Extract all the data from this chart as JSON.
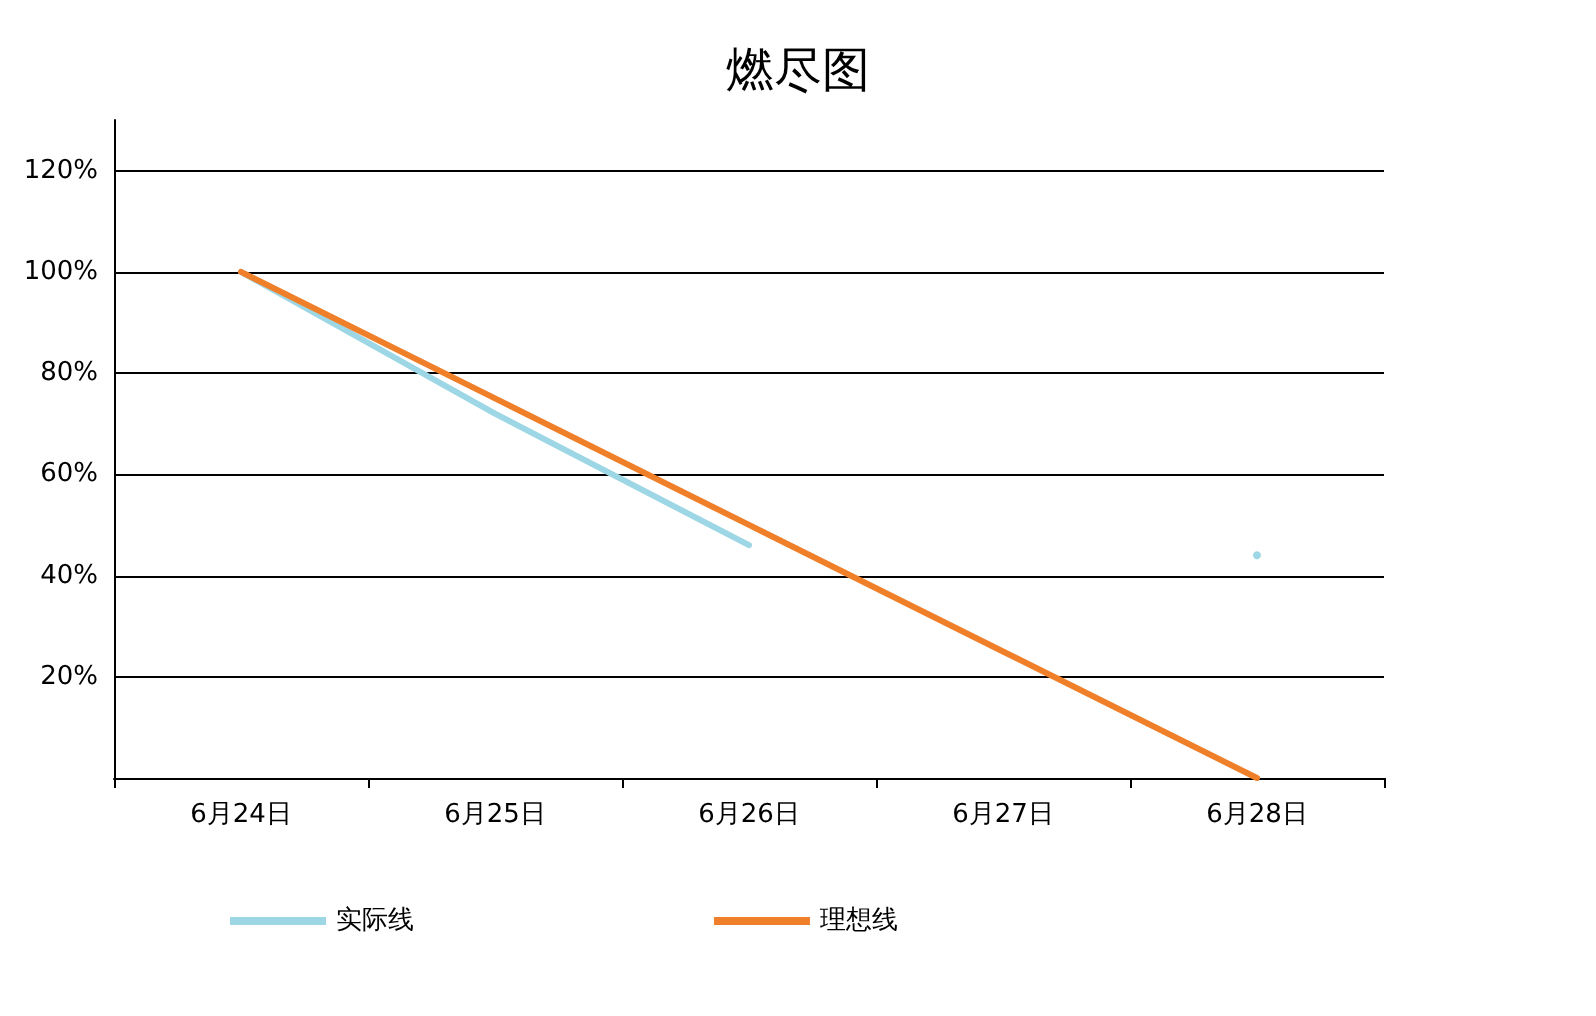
{
  "chart_data": {
    "type": "line",
    "title": "燃尽图",
    "categories": [
      "6月24日",
      "6月25日",
      "6月26日",
      "6月27日",
      "6月28日"
    ],
    "series": [
      {
        "name": "实际线",
        "color": "#9dd6e4",
        "values": [
          100,
          72,
          46,
          null,
          44
        ]
      },
      {
        "name": "理想线",
        "color": "#f07f2a",
        "values": [
          100,
          75,
          50,
          25,
          0
        ]
      }
    ],
    "ylim": [
      0,
      130
    ],
    "yticks": [
      {
        "value": 0,
        "label": null
      },
      {
        "value": 20,
        "label": "20%"
      },
      {
        "value": 40,
        "label": "40%"
      },
      {
        "value": 60,
        "label": "60%"
      },
      {
        "value": 80,
        "label": "80%"
      },
      {
        "value": 100,
        "label": "100%"
      },
      {
        "value": 120,
        "label": "120%"
      }
    ],
    "grid": "y",
    "legend": "bottom",
    "marker": "none",
    "line_style": "solid"
  }
}
